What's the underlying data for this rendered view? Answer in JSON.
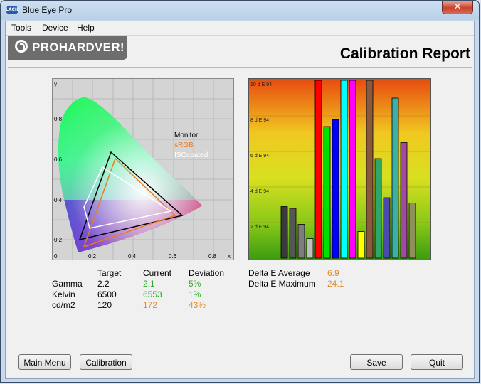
{
  "window": {
    "title": "Blue Eye Pro",
    "app_icon": "LACIE",
    "close_glyph": "✕"
  },
  "menu": [
    "Tools",
    "Device",
    "Help"
  ],
  "logo_text": "PROHARDVER!",
  "report_title": "Calibration Report",
  "cie": {
    "y_axis_label": "y",
    "x_axis_label": "x",
    "y_ticks": [
      "0.8",
      "0.6",
      "0.4",
      "0.2",
      "0"
    ],
    "x_ticks": [
      "0.2",
      "0.4",
      "0.6",
      "0.8"
    ],
    "legend": [
      {
        "label": "Monitor",
        "color": "#000000"
      },
      {
        "label": "sRGB",
        "color": "#f07a1a"
      },
      {
        "label": "ISOcoated",
        "color": "#ffffff"
      }
    ]
  },
  "chart_data": {
    "type": "bar",
    "y_ticks": [
      "10 d E 94",
      "8 d E 94",
      "6 d E 94",
      "4 d E 94",
      "2 d E 94"
    ],
    "ylim": [
      0,
      10
    ],
    "bar_colors": [
      "#3a3a3a",
      "#555555",
      "#7d7d7d",
      "#bfbfbf",
      "#ff0000",
      "#00e000",
      "#0000ff",
      "#00ffff",
      "#ff00ff",
      "#ffff00",
      "#8b5a3c",
      "#2fa66a",
      "#4a4ab0",
      "#3ab0a8",
      "#a04aa0",
      "#8f8f5a"
    ],
    "values": [
      2.9,
      2.8,
      1.9,
      1.1,
      10.0,
      7.4,
      7.8,
      10.0,
      10.0,
      1.5,
      10.0,
      5.6,
      3.4,
      9.0,
      6.5,
      3.1
    ]
  },
  "stats": {
    "headers": [
      "Target",
      "Current",
      "Deviation"
    ],
    "rows": [
      {
        "name": "Gamma",
        "target": "2.2",
        "current": "2.1",
        "deviation": "5%",
        "current_color": "green",
        "deviation_color": "green"
      },
      {
        "name": "Kelvin",
        "target": "6500",
        "current": "6553",
        "deviation": "1%",
        "current_color": "green",
        "deviation_color": "green"
      },
      {
        "name": "cd/m2",
        "target": "120",
        "current": "172",
        "deviation": "43%",
        "current_color": "orange",
        "deviation_color": "orange"
      }
    ]
  },
  "delta": {
    "average_label": "Delta E Average",
    "average_value": "6.9",
    "maximum_label": "Delta E Maximum",
    "maximum_value": "24.1"
  },
  "buttons": {
    "main_menu": "Main Menu",
    "calibration": "Calibration",
    "save": "Save",
    "quit": "Quit"
  }
}
